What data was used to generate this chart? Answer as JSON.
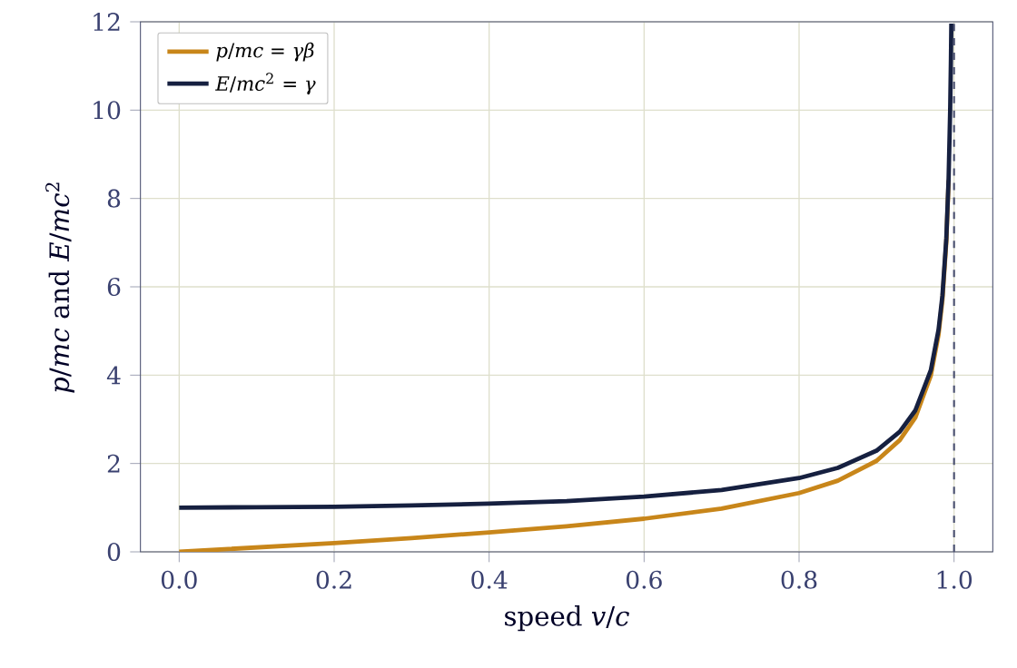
{
  "chart_data": {
    "type": "line",
    "xlabel": "speed *v*/*c*",
    "ylabel": "*p*/*mc* and *E*/*mc*$^{2}$",
    "xlim": [
      -0.05,
      1.05
    ],
    "xticks": [
      {
        "value": 0,
        "label": "0.0"
      },
      {
        "value": 0.2,
        "label": "0.2"
      },
      {
        "value": 0.4,
        "label": "0.4"
      },
      {
        "value": 0.6,
        "label": "0.6"
      },
      {
        "value": 0.8,
        "label": "0.8"
      },
      {
        "value": 1,
        "label": "1.0"
      }
    ],
    "ylim": [
      0,
      12
    ],
    "yticks": [
      0,
      2,
      4,
      6,
      8,
      10,
      12
    ],
    "grid": true,
    "legend": "top left",
    "marker": "none",
    "line_style": "solid",
    "x": [
      0,
      0.1,
      0.2,
      0.3,
      0.4,
      0.5,
      0.6,
      0.7,
      0.8,
      0.85,
      0.9,
      0.93,
      0.95,
      0.97,
      0.98,
      0.985,
      0.99,
      0.993,
      0.995,
      0.996,
      0.9965
    ],
    "series": [
      {
        "name": "*p*/*mc* = *γβ*",
        "color": "#c8861a",
        "values": [
          0,
          0.1,
          0.2,
          0.31,
          0.44,
          0.58,
          0.75,
          0.98,
          1.33,
          1.61,
          2.06,
          2.53,
          3.04,
          3.99,
          4.92,
          5.71,
          7.02,
          8.41,
          null,
          null,
          null
        ]
      },
      {
        "name": "*E*/*mc*$^{2}$ = *γ*",
        "color": "#162040",
        "values": [
          1,
          1.01,
          1.02,
          1.05,
          1.09,
          1.15,
          1.25,
          1.4,
          1.67,
          1.9,
          2.29,
          2.72,
          3.2,
          4.11,
          5.03,
          5.8,
          7.09,
          8.47,
          10.01,
          11.19,
          11.96
        ]
      }
    ],
    "ref_lines": [
      {
        "axis": "x",
        "value": 1,
        "color": "#4a5070",
        "line_style": "dashed"
      }
    ]
  }
}
